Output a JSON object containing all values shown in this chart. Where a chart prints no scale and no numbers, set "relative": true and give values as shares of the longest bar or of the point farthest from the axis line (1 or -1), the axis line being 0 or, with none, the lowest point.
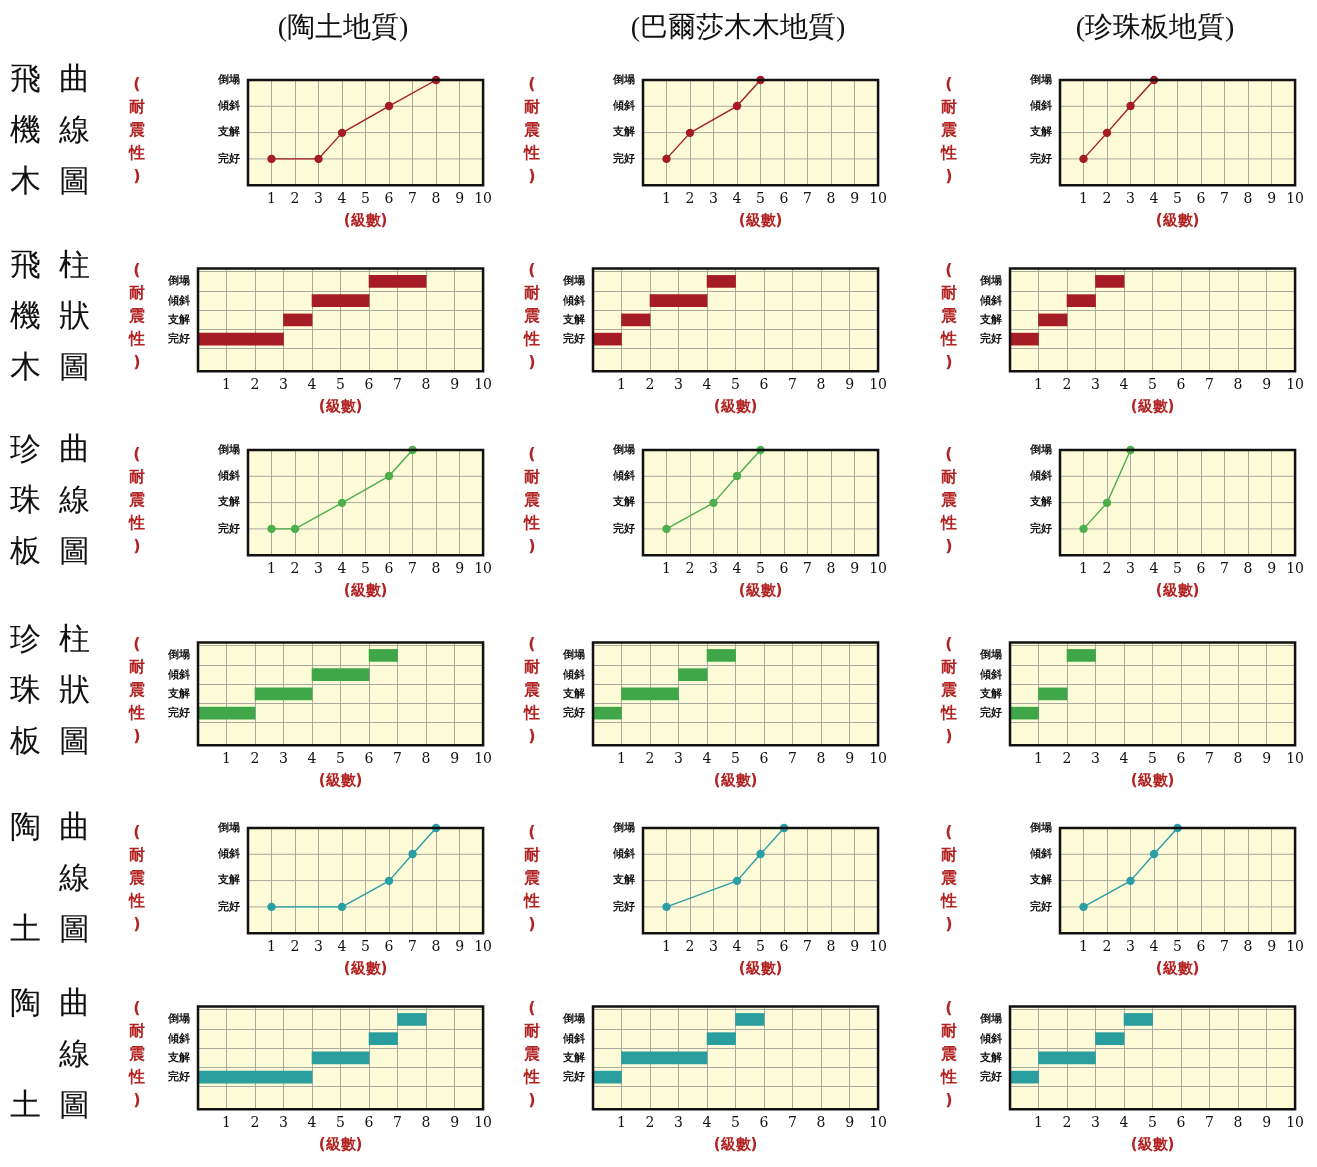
{
  "chart_data": [
    {
      "type": "line",
      "relative": true,
      "title": "(陶土地質)",
      "subtitle": "飛機木曲線圖",
      "annotations": [
        "完好",
        "支解",
        "傾斜",
        "倒塌"
      ],
      "ylabel": "(耐震性)",
      "xlabel": "(級數)",
      "x": [
        1,
        3,
        4,
        6,
        8
      ],
      "values": [
        0,
        0,
        0.33,
        0.67,
        1
      ],
      "color": "#a51c24",
      "xlim": [
        0,
        10
      ],
      "xticks": [
        1,
        2,
        3,
        4,
        5,
        6,
        7,
        8,
        9,
        10
      ],
      "grid": true,
      "marker": "circle"
    },
    {
      "type": "line",
      "relative": true,
      "title": "(巴爾莎木木地質)",
      "annotations": [
        "完好",
        "支解",
        "傾斜",
        "倒塌"
      ],
      "ylabel": "(耐震性)",
      "xlabel": "(級數)",
      "x": [
        1,
        2,
        4,
        5
      ],
      "values": [
        0,
        0.33,
        0.67,
        1
      ],
      "color": "#a51c24",
      "xlim": [
        0,
        10
      ],
      "xticks": [
        1,
        2,
        3,
        4,
        5,
        6,
        7,
        8,
        9,
        10
      ],
      "grid": true,
      "marker": "circle"
    },
    {
      "type": "line",
      "relative": true,
      "title": "(珍珠板地質)",
      "annotations": [
        "完好",
        "支解",
        "傾斜",
        "倒塌"
      ],
      "ylabel": "(耐震性)",
      "xlabel": "(級數)",
      "x": [
        1,
        2,
        3,
        4
      ],
      "values": [
        0,
        0.33,
        0.67,
        1
      ],
      "color": "#a51c24",
      "xlim": [
        0,
        10
      ],
      "xticks": [
        1,
        2,
        3,
        4,
        5,
        6,
        7,
        8,
        9,
        10
      ],
      "grid": true,
      "marker": "circle"
    },
    {
      "type": "bar",
      "orientation": "horizontal",
      "subtitle": "飛機木柱狀圖",
      "ylabel": "(耐震性)",
      "xlabel": "(級數)",
      "categories": [
        "倒塌",
        "傾斜",
        "支解",
        "完好"
      ],
      "values": [
        2,
        2,
        1,
        3
      ],
      "base": [
        6,
        4,
        3,
        0
      ],
      "color": "#a51c24",
      "xlim": [
        0,
        10
      ],
      "xticks": [
        1,
        2,
        3,
        4,
        5,
        6,
        7,
        8,
        9,
        10
      ],
      "grid": true
    },
    {
      "type": "bar",
      "orientation": "horizontal",
      "ylabel": "(耐震性)",
      "xlabel": "(級數)",
      "categories": [
        "倒塌",
        "傾斜",
        "支解",
        "完好"
      ],
      "values": [
        1,
        2,
        1,
        1
      ],
      "base": [
        4,
        2,
        1,
        0
      ],
      "color": "#a51c24",
      "xlim": [
        0,
        10
      ],
      "xticks": [
        1,
        2,
        3,
        4,
        5,
        6,
        7,
        8,
        9,
        10
      ],
      "grid": true
    },
    {
      "type": "bar",
      "orientation": "horizontal",
      "ylabel": "(耐震性)",
      "xlabel": "(級數)",
      "categories": [
        "倒塌",
        "傾斜",
        "支解",
        "完好"
      ],
      "values": [
        1,
        1,
        1,
        1
      ],
      "base": [
        3,
        2,
        1,
        0
      ],
      "color": "#a51c24",
      "xlim": [
        0,
        10
      ],
      "xticks": [
        1,
        2,
        3,
        4,
        5,
        6,
        7,
        8,
        9,
        10
      ],
      "grid": true
    },
    {
      "type": "line",
      "relative": true,
      "subtitle": "珍珠板曲線圖",
      "annotations": [
        "完好",
        "支解",
        "傾斜",
        "倒塌"
      ],
      "ylabel": "(耐震性)",
      "xlabel": "(級數)",
      "x": [
        1,
        2,
        4,
        6,
        7
      ],
      "values": [
        0,
        0,
        0.33,
        0.67,
        1
      ],
      "color": "#4cae4c",
      "xlim": [
        0,
        10
      ],
      "xticks": [
        1,
        2,
        3,
        4,
        5,
        6,
        7,
        8,
        9,
        10
      ],
      "grid": true,
      "marker": "circle"
    },
    {
      "type": "line",
      "relative": true,
      "annotations": [
        "完好",
        "支解",
        "傾斜",
        "倒塌"
      ],
      "ylabel": "(耐震性)",
      "xlabel": "(級數)",
      "x": [
        1,
        3,
        4,
        5
      ],
      "values": [
        0,
        0.33,
        0.67,
        1
      ],
      "color": "#4cae4c",
      "xlim": [
        0,
        10
      ],
      "xticks": [
        1,
        2,
        3,
        4,
        5,
        6,
        7,
        8,
        9,
        10
      ],
      "grid": true,
      "marker": "circle"
    },
    {
      "type": "line",
      "relative": true,
      "annotations": [
        "完好",
        "支解",
        "傾斜",
        "倒塌"
      ],
      "ylabel": "(耐震性)",
      "xlabel": "(級數)",
      "x": [
        1,
        2,
        3
      ],
      "values": [
        0,
        0.33,
        1
      ],
      "color": "#4cae4c",
      "xlim": [
        0,
        10
      ],
      "xticks": [
        1,
        2,
        3,
        4,
        5,
        6,
        7,
        8,
        9,
        10
      ],
      "grid": true,
      "marker": "circle"
    },
    {
      "type": "bar",
      "orientation": "horizontal",
      "subtitle": "珍珠板柱狀圖",
      "ylabel": "(耐震性)",
      "xlabel": "(級數)",
      "categories": [
        "倒塌",
        "傾斜",
        "支解",
        "完好"
      ],
      "values": [
        1,
        2,
        2,
        2
      ],
      "base": [
        6,
        4,
        2,
        0
      ],
      "color": "#3fa64a",
      "xlim": [
        0,
        10
      ],
      "xticks": [
        1,
        2,
        3,
        4,
        5,
        6,
        7,
        8,
        9,
        10
      ],
      "grid": true
    },
    {
      "type": "bar",
      "orientation": "horizontal",
      "ylabel": "(耐震性)",
      "xlabel": "(級數)",
      "categories": [
        "倒塌",
        "傾斜",
        "支解",
        "完好"
      ],
      "values": [
        1,
        1,
        2,
        1
      ],
      "base": [
        4,
        3,
        1,
        0
      ],
      "color": "#3fa64a",
      "xlim": [
        0,
        10
      ],
      "xticks": [
        1,
        2,
        3,
        4,
        5,
        6,
        7,
        8,
        9,
        10
      ],
      "grid": true
    },
    {
      "type": "bar",
      "orientation": "horizontal",
      "ylabel": "(耐震性)",
      "xlabel": "(級數)",
      "categories": [
        "倒塌",
        "傾斜",
        "支解",
        "完好"
      ],
      "values": [
        1,
        null,
        1,
        1
      ],
      "base": [
        2,
        null,
        1,
        0
      ],
      "color": "#3fa64a",
      "xlim": [
        0,
        10
      ],
      "xticks": [
        1,
        2,
        3,
        4,
        5,
        6,
        7,
        8,
        9,
        10
      ],
      "grid": true
    },
    {
      "type": "line",
      "relative": true,
      "subtitle": "陶土曲線圖",
      "annotations": [
        "完好",
        "支解",
        "傾斜",
        "倒塌"
      ],
      "ylabel": "(耐震性)",
      "xlabel": "(級數)",
      "x": [
        1,
        4,
        6,
        7,
        8
      ],
      "values": [
        0,
        0,
        0.33,
        0.67,
        1
      ],
      "color": "#2b9ea6",
      "xlim": [
        0,
        10
      ],
      "xticks": [
        1,
        2,
        3,
        4,
        5,
        6,
        7,
        8,
        9,
        10
      ],
      "grid": true,
      "marker": "circle"
    },
    {
      "type": "line",
      "relative": true,
      "annotations": [
        "完好",
        "支解",
        "傾斜",
        "倒塌"
      ],
      "ylabel": "(耐震性)",
      "xlabel": "(級數)",
      "x": [
        1,
        4,
        5,
        6
      ],
      "values": [
        0,
        0.33,
        0.67,
        1
      ],
      "color": "#2b9ea6",
      "xlim": [
        0,
        10
      ],
      "xticks": [
        1,
        2,
        3,
        4,
        5,
        6,
        7,
        8,
        9,
        10
      ],
      "grid": true,
      "marker": "circle"
    },
    {
      "type": "line",
      "relative": true,
      "annotations": [
        "完好",
        "支解",
        "傾斜",
        "倒塌"
      ],
      "ylabel": "(耐震性)",
      "xlabel": "(級數)",
      "x": [
        1,
        3,
        4,
        5
      ],
      "values": [
        0,
        0.33,
        0.67,
        1
      ],
      "color": "#2b9ea6",
      "xlim": [
        0,
        10
      ],
      "xticks": [
        1,
        2,
        3,
        4,
        5,
        6,
        7,
        8,
        9,
        10
      ],
      "grid": true,
      "marker": "circle"
    },
    {
      "type": "bar",
      "orientation": "horizontal",
      "subtitle": "陶土曲線圖",
      "ylabel": "(耐震性)",
      "xlabel": "(級數)",
      "categories": [
        "倒塌",
        "傾斜",
        "支解",
        "完好"
      ],
      "values": [
        1,
        1,
        2,
        4
      ],
      "base": [
        7,
        6,
        4,
        0
      ],
      "color": "#2a9d9f",
      "xlim": [
        0,
        10
      ],
      "xticks": [
        1,
        2,
        3,
        4,
        5,
        6,
        7,
        8,
        9,
        10
      ],
      "grid": true
    },
    {
      "type": "bar",
      "orientation": "horizontal",
      "ylabel": "(耐震性)",
      "xlabel": "(級數)",
      "categories": [
        "倒塌",
        "傾斜",
        "支解",
        "完好"
      ],
      "values": [
        1,
        1,
        3,
        1
      ],
      "base": [
        5,
        4,
        1,
        0
      ],
      "color": "#2a9d9f",
      "xlim": [
        0,
        10
      ],
      "xticks": [
        1,
        2,
        3,
        4,
        5,
        6,
        7,
        8,
        9,
        10
      ],
      "grid": true
    },
    {
      "type": "bar",
      "orientation": "horizontal",
      "ylabel": "(耐震性)",
      "xlabel": "(級數)",
      "categories": [
        "倒塌",
        "傾斜",
        "支解",
        "完好"
      ],
      "values": [
        1,
        1,
        2,
        1
      ],
      "base": [
        4,
        3,
        1,
        0
      ],
      "color": "#2a9d9f",
      "xlim": [
        0,
        10
      ],
      "xticks": [
        1,
        2,
        3,
        4,
        5,
        6,
        7,
        8,
        9,
        10
      ],
      "grid": true
    }
  ]
}
